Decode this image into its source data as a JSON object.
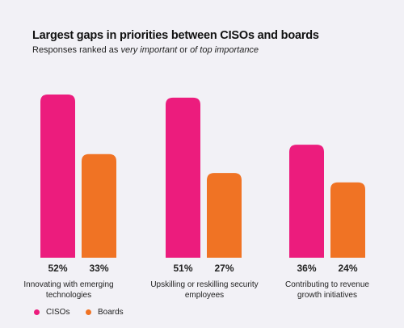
{
  "header": {
    "title": "Largest gaps in priorities between CISOs and boards",
    "subtitle_plain_1": "Responses ranked as ",
    "subtitle_em_1": "very important",
    "subtitle_plain_2": " or ",
    "subtitle_em_2": "of top importance"
  },
  "colors": {
    "cisos": "#ec1c7d",
    "boards": "#f07324"
  },
  "chart_data": {
    "type": "bar",
    "title": "Largest gaps in priorities between CISOs and boards",
    "subtitle": "Responses ranked as very important or of top importance",
    "categories": [
      [
        "Innovating with emerging",
        "technologies"
      ],
      [
        "Upskilling or reskilling security",
        "employees"
      ],
      [
        "Contributing to revenue",
        "growth initiatives"
      ]
    ],
    "series": [
      {
        "name": "CISOs",
        "color": "#ec1c7d",
        "values": [
          52,
          51,
          36
        ],
        "labels": [
          "52%",
          "51%",
          "36%"
        ]
      },
      {
        "name": "Boards",
        "color": "#f07324",
        "values": [
          33,
          27,
          24
        ],
        "labels": [
          "33%",
          "27%",
          "24%"
        ]
      }
    ],
    "ylim": [
      0,
      52
    ],
    "xlabel": "",
    "ylabel": "",
    "grid": false,
    "legend": "bottom-left"
  }
}
